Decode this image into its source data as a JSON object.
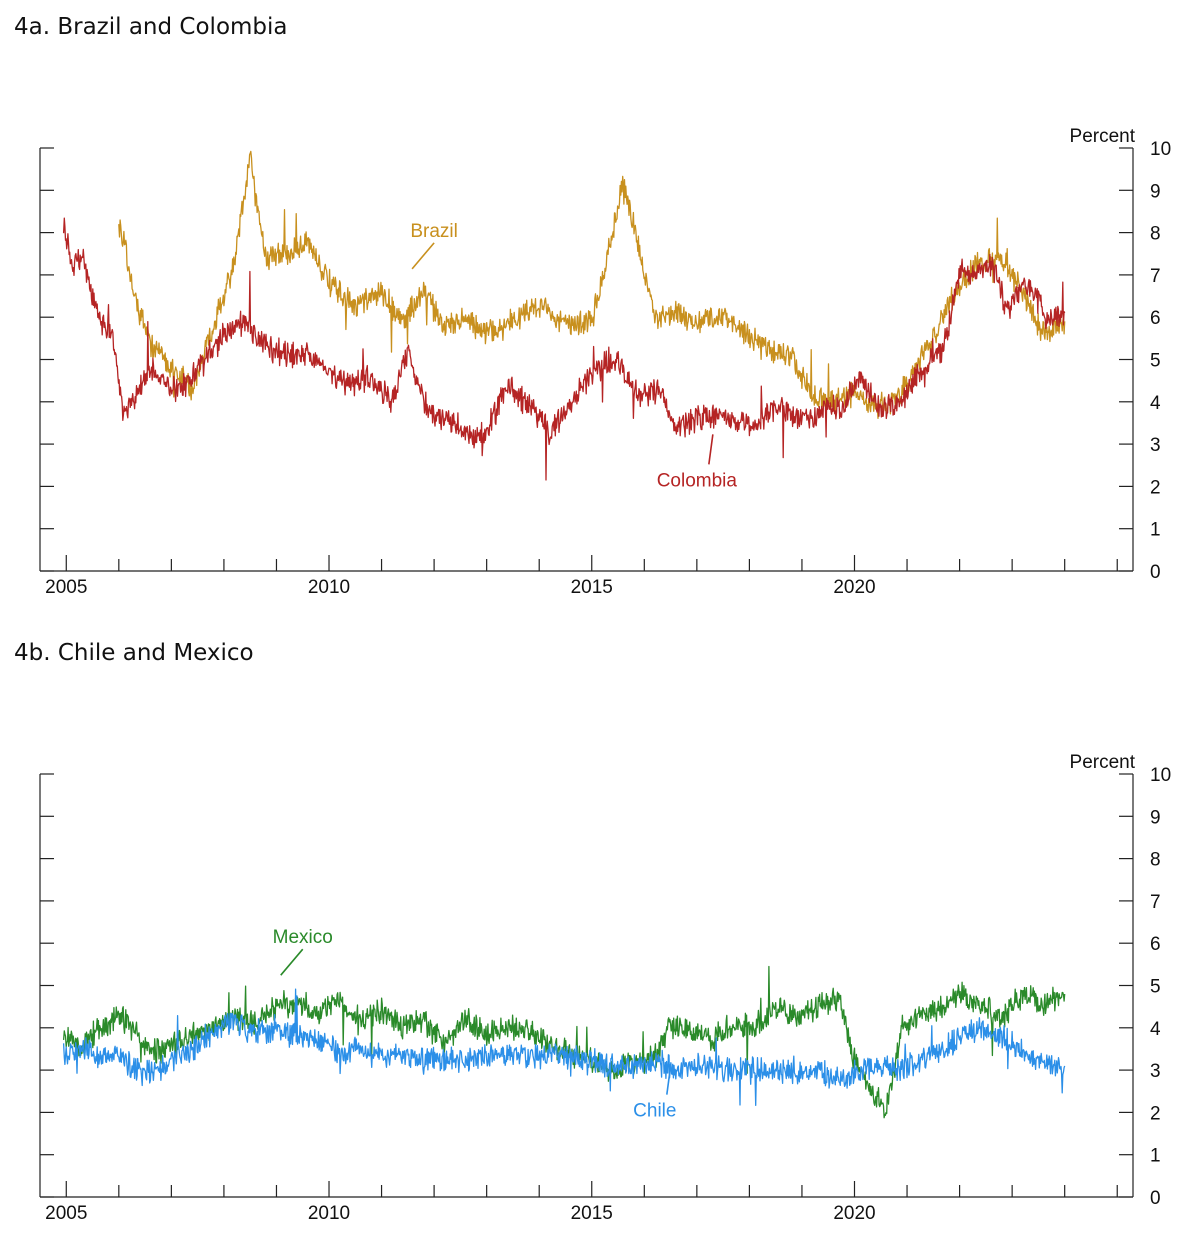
{
  "chart_data": [
    {
      "type": "line",
      "title": "4a. Brazil and Colombia",
      "ylabel": "Percent",
      "xlim": [
        2004.5,
        2025.3
      ],
      "ylim": [
        0,
        10
      ],
      "x_ticks": [
        2005,
        2010,
        2015,
        2020
      ],
      "y_ticks": [
        0,
        1,
        2,
        3,
        4,
        5,
        6,
        7,
        8,
        9,
        10
      ],
      "grid": false,
      "series": [
        {
          "name": "Brazil",
          "color": "#c8901e",
          "x": [
            2006.0,
            2006.3,
            2006.6,
            2007.0,
            2007.4,
            2007.8,
            2008.2,
            2008.5,
            2008.8,
            2009.2,
            2009.6,
            2010.0,
            2010.5,
            2011.0,
            2011.4,
            2011.8,
            2012.2,
            2012.6,
            2013.0,
            2013.5,
            2014.0,
            2014.5,
            2015.0,
            2015.3,
            2015.6,
            2015.9,
            2016.2,
            2016.6,
            2017.0,
            2017.5,
            2018.0,
            2018.4,
            2018.8,
            2019.2,
            2019.6,
            2020.0,
            2020.4,
            2020.8,
            2021.2,
            2021.6,
            2022.0,
            2022.4,
            2022.8,
            2023.2,
            2023.6,
            2024.0
          ],
          "values": [
            8.3,
            6.5,
            5.4,
            4.8,
            4.3,
            5.8,
            7.2,
            9.8,
            7.4,
            7.5,
            7.8,
            6.8,
            6.2,
            6.6,
            5.9,
            6.6,
            5.8,
            6.0,
            5.6,
            5.9,
            6.3,
            5.8,
            5.9,
            7.4,
            9.2,
            7.6,
            6.0,
            6.1,
            5.8,
            6.1,
            5.5,
            5.2,
            5.1,
            4.1,
            4.0,
            4.2,
            3.8,
            4.1,
            4.9,
            5.8,
            6.8,
            7.3,
            7.4,
            6.6,
            5.6,
            5.9
          ]
        },
        {
          "name": "Colombia",
          "color": "#b52424",
          "x": [
            2004.95,
            2005.1,
            2005.3,
            2005.6,
            2005.9,
            2006.1,
            2006.3,
            2006.6,
            2006.9,
            2007.2,
            2007.6,
            2008.0,
            2008.4,
            2008.8,
            2009.2,
            2009.6,
            2010.0,
            2010.4,
            2010.8,
            2011.2,
            2011.5,
            2011.9,
            2012.3,
            2012.7,
            2013.0,
            2013.4,
            2013.8,
            2014.2,
            2014.6,
            2015.0,
            2015.3,
            2015.6,
            2015.9,
            2016.3,
            2016.6,
            2017.0,
            2017.5,
            2018.0,
            2018.5,
            2019.0,
            2019.4,
            2019.8,
            2020.1,
            2020.5,
            2020.9,
            2021.3,
            2021.7,
            2022.0,
            2022.3,
            2022.6,
            2022.9,
            2023.3,
            2023.7,
            2024.0
          ],
          "values": [
            8.2,
            7.2,
            7.4,
            6.1,
            5.4,
            3.6,
            4.1,
            4.8,
            4.4,
            4.3,
            4.9,
            5.6,
            5.9,
            5.3,
            5.1,
            5.2,
            4.7,
            4.4,
            4.6,
            4.0,
            5.2,
            3.7,
            3.6,
            3.1,
            3.3,
            4.4,
            3.9,
            3.3,
            4.0,
            4.6,
            5.0,
            4.8,
            4.1,
            4.3,
            3.3,
            3.6,
            3.7,
            3.4,
            3.9,
            3.6,
            3.8,
            3.9,
            4.6,
            3.8,
            4.0,
            4.8,
            5.3,
            7.1,
            7.0,
            7.3,
            6.2,
            6.8,
            5.9,
            6.1
          ]
        }
      ],
      "annotations": [
        {
          "text": "Brazil",
          "x": 2012.0,
          "y": 7.9
        },
        {
          "text": "Colombia",
          "x": 2017.0,
          "y": 2.0
        }
      ]
    },
    {
      "type": "line",
      "title": "4b. Chile and Mexico",
      "ylabel": "Percent",
      "xlim": [
        2004.5,
        2025.3
      ],
      "ylim": [
        0,
        10
      ],
      "x_ticks": [
        2005,
        2010,
        2015,
        2020
      ],
      "y_ticks": [
        0,
        1,
        2,
        3,
        4,
        5,
        6,
        7,
        8,
        9,
        10
      ],
      "grid": false,
      "series": [
        {
          "name": "Mexico",
          "color": "#2a8a2a",
          "x": [
            2004.95,
            2005.3,
            2005.6,
            2006.0,
            2006.3,
            2006.6,
            2007.0,
            2007.4,
            2007.8,
            2008.2,
            2008.6,
            2009.0,
            2009.4,
            2009.8,
            2010.2,
            2010.6,
            2011.0,
            2011.4,
            2011.8,
            2012.2,
            2012.6,
            2013.0,
            2013.4,
            2013.8,
            2014.2,
            2014.6,
            2015.0,
            2015.4,
            2015.8,
            2016.2,
            2016.5,
            2016.9,
            2017.3,
            2017.7,
            2018.1,
            2018.5,
            2018.9,
            2019.3,
            2019.7,
            2020.0,
            2020.3,
            2020.6,
            2020.9,
            2021.3,
            2021.7,
            2022.0,
            2022.4,
            2022.8,
            2023.2,
            2023.6,
            2024.0
          ],
          "values": [
            3.8,
            3.6,
            3.9,
            4.3,
            3.9,
            3.4,
            3.6,
            3.8,
            4.0,
            4.3,
            4.1,
            4.5,
            4.6,
            4.3,
            4.6,
            4.2,
            4.4,
            4.0,
            4.2,
            3.6,
            4.2,
            3.8,
            4.0,
            3.9,
            3.6,
            3.4,
            3.2,
            3.0,
            3.1,
            3.3,
            4.1,
            3.9,
            3.7,
            4.1,
            4.0,
            4.5,
            4.3,
            4.5,
            4.7,
            3.2,
            2.6,
            2.0,
            4.0,
            4.3,
            4.5,
            4.8,
            4.6,
            4.2,
            4.8,
            4.6,
            4.8
          ]
        },
        {
          "name": "Chile",
          "color": "#2b8fe8",
          "x": [
            2004.95,
            2005.3,
            2005.6,
            2006.0,
            2006.3,
            2006.6,
            2007.0,
            2007.4,
            2007.8,
            2008.2,
            2008.6,
            2009.0,
            2009.4,
            2009.8,
            2010.2,
            2010.6,
            2011.0,
            2011.4,
            2011.8,
            2012.2,
            2012.6,
            2013.0,
            2013.4,
            2013.8,
            2014.2,
            2014.6,
            2015.0,
            2015.4,
            2015.8,
            2016.2,
            2016.6,
            2017.0,
            2017.5,
            2018.0,
            2018.5,
            2019.0,
            2019.4,
            2019.8,
            2020.1,
            2020.4,
            2020.8,
            2021.2,
            2021.6,
            2022.0,
            2022.4,
            2022.8,
            2023.2,
            2023.6,
            2024.0
          ],
          "values": [
            3.4,
            3.5,
            3.3,
            3.4,
            3.0,
            2.9,
            3.2,
            3.5,
            3.9,
            4.2,
            3.9,
            4.0,
            3.8,
            3.7,
            3.4,
            3.5,
            3.3,
            3.4,
            3.2,
            3.3,
            3.2,
            3.3,
            3.4,
            3.3,
            3.4,
            3.3,
            3.2,
            3.1,
            3.1,
            3.2,
            3.0,
            3.1,
            3.0,
            3.0,
            3.0,
            3.0,
            2.9,
            2.8,
            3.0,
            3.1,
            3.0,
            3.2,
            3.4,
            3.8,
            4.0,
            3.8,
            3.4,
            3.2,
            3.1
          ]
        }
      ],
      "annotations": [
        {
          "text": "Mexico",
          "x": 2009.5,
          "y": 6.0
        },
        {
          "text": "Chile",
          "x": 2016.2,
          "y": 1.9
        }
      ]
    }
  ]
}
